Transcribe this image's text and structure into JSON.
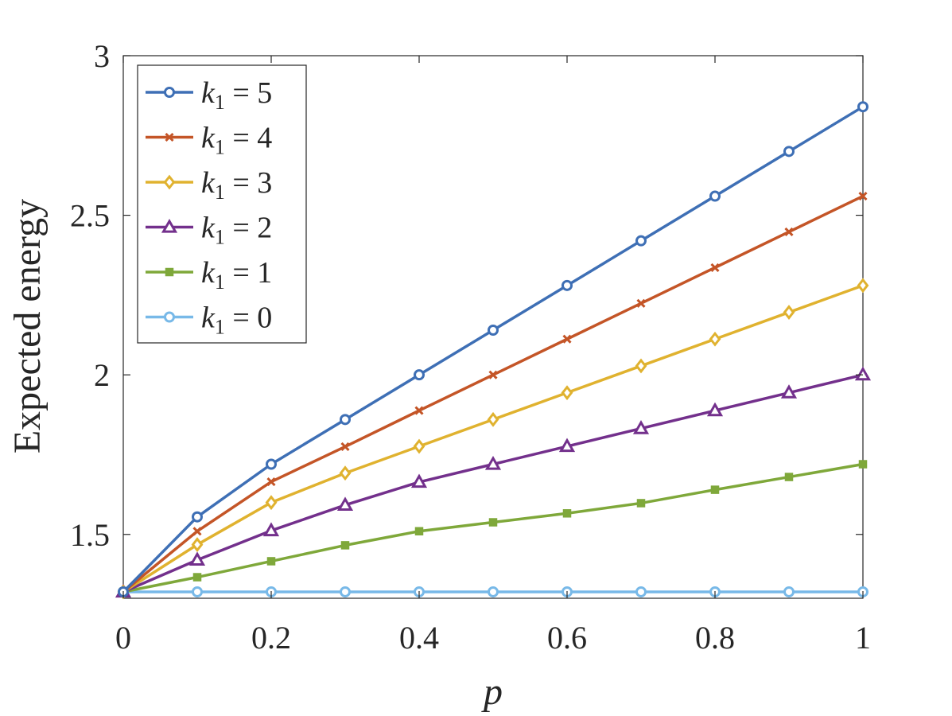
{
  "chart_data": {
    "type": "line",
    "xlabel": "p",
    "ylabel": "Expected energy",
    "xlim": [
      0,
      1
    ],
    "ylim": [
      1.3,
      3
    ],
    "xticks": [
      0,
      0.2,
      0.4,
      0.6,
      0.8,
      1
    ],
    "xtick_labels": [
      "0",
      "0.2",
      "0.4",
      "0.6",
      "0.8",
      "1"
    ],
    "yticks": [
      1.5,
      2,
      2.5,
      3
    ],
    "ytick_labels": [
      "1.5",
      "2",
      "2.5",
      "3"
    ],
    "grid": false,
    "legend_position": "top-left",
    "x": [
      0,
      0.1,
      0.2,
      0.3,
      0.4,
      0.5,
      0.6,
      0.7,
      0.8,
      0.9,
      1.0
    ],
    "series": [
      {
        "name": "k1 = 5",
        "label_var": "k",
        "label_sub": "1",
        "label_rhs": " = 5",
        "color": "#3E6FB5",
        "marker": "circle",
        "values": [
          1.32,
          1.555,
          1.72,
          1.86,
          2.0,
          2.14,
          2.28,
          2.42,
          2.56,
          2.7,
          2.84
        ]
      },
      {
        "name": "k1 = 4",
        "label_var": "k",
        "label_sub": "1",
        "label_rhs": " = 4",
        "color": "#C45527",
        "marker": "x",
        "values": [
          1.32,
          1.51,
          1.665,
          1.775,
          1.888,
          2.0,
          2.112,
          2.224,
          2.336,
          2.448,
          2.56
        ]
      },
      {
        "name": "k1 = 3",
        "label_var": "k",
        "label_sub": "1",
        "label_rhs": " = 3",
        "color": "#E0B22F",
        "marker": "diamond",
        "values": [
          1.32,
          1.468,
          1.6,
          1.692,
          1.776,
          1.86,
          1.944,
          2.028,
          2.112,
          2.196,
          2.28
        ]
      },
      {
        "name": "k1 = 2",
        "label_var": "k",
        "label_sub": "1",
        "label_rhs": " = 2",
        "color": "#73308C",
        "marker": "triangle",
        "values": [
          1.32,
          1.42,
          1.512,
          1.592,
          1.664,
          1.72,
          1.776,
          1.832,
          1.888,
          1.944,
          2.0
        ]
      },
      {
        "name": "k1 = 1",
        "label_var": "k",
        "label_sub": "1",
        "label_rhs": " = 1",
        "color": "#7FA83A",
        "marker": "square",
        "values": [
          1.32,
          1.366,
          1.416,
          1.466,
          1.51,
          1.538,
          1.566,
          1.598,
          1.64,
          1.68,
          1.72
        ]
      },
      {
        "name": "k1 = 0",
        "label_var": "k",
        "label_sub": "1",
        "label_rhs": " = 0",
        "color": "#78B9E8",
        "marker": "circle",
        "values": [
          1.32,
          1.32,
          1.32,
          1.32,
          1.32,
          1.32,
          1.32,
          1.32,
          1.32,
          1.32,
          1.32
        ]
      }
    ]
  }
}
